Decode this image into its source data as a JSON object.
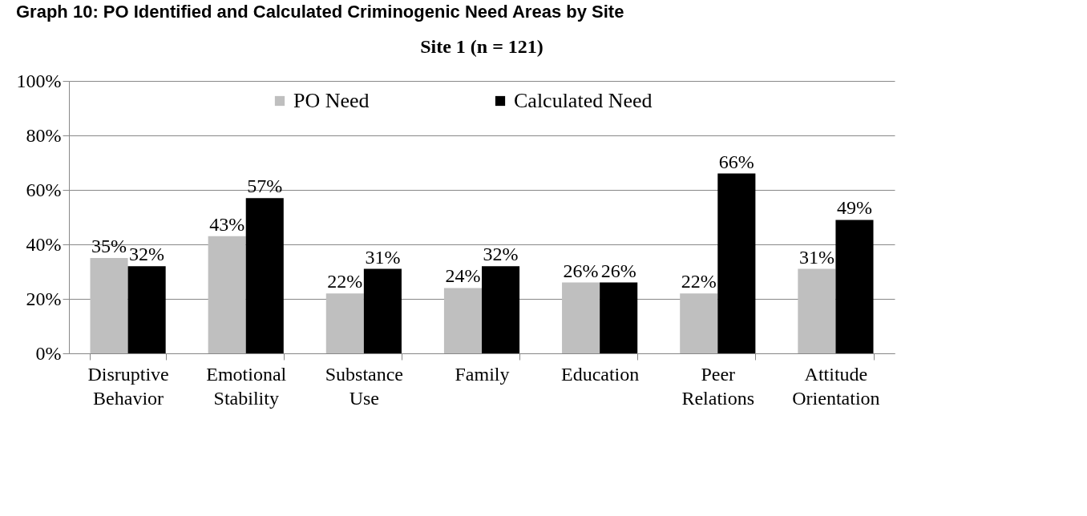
{
  "chart_data": {
    "type": "bar",
    "title": "Graph 10: PO Identified and Calculated Criminogenic Need Areas by Site",
    "subtitle": "Site 1 (n = 121)",
    "categories": [
      "Disruptive Behavior",
      "Emotional Stability",
      "Substance Use",
      "Family",
      "Education",
      "Peer Relations",
      "Attitude Orientation"
    ],
    "series": [
      {
        "name": "PO Need",
        "color": "#bfbfbf",
        "values": [
          35,
          43,
          22,
          24,
          26,
          22,
          31
        ],
        "value_labels": [
          "35%",
          "43%",
          "22%",
          "24%",
          "26%",
          "22%",
          "31%"
        ]
      },
      {
        "name": "Calculated Need",
        "color": "#000000",
        "values": [
          32,
          57,
          31,
          32,
          26,
          66,
          49
        ],
        "value_labels": [
          "32%",
          "57%",
          "31%",
          "32%",
          "26%",
          "66%",
          "49%"
        ]
      }
    ],
    "ylim": [
      0,
      100
    ],
    "yticks": [
      {
        "value": 0,
        "label": "0%"
      },
      {
        "value": 20,
        "label": "20%"
      },
      {
        "value": 40,
        "label": "40%"
      },
      {
        "value": 60,
        "label": "60%"
      },
      {
        "value": 80,
        "label": "80%"
      },
      {
        "value": 100,
        "label": "100%"
      }
    ],
    "grid": "y",
    "legend": "top"
  }
}
